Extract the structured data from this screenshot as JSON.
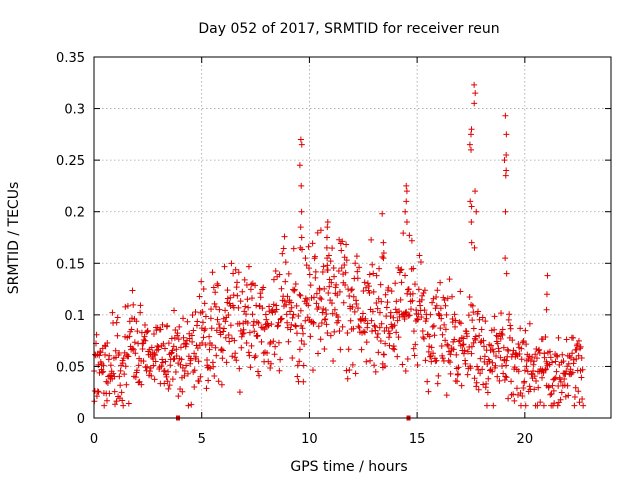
{
  "chart_data": {
    "type": "scatter",
    "title": "Day 052 of 2017, SRMTID for receiver reun",
    "xlabel": "GPS time / hours",
    "ylabel": "SRMTID / TECUs",
    "xlim": [
      0,
      24
    ],
    "ylim": [
      0,
      0.35
    ],
    "xticks": [
      0,
      5,
      10,
      15,
      20
    ],
    "xtick_labels": [
      "0",
      "5",
      "10",
      "15",
      "20"
    ],
    "yticks": [
      0,
      0.05,
      0.1,
      0.15,
      0.2,
      0.25,
      0.3,
      0.35
    ],
    "ytick_labels": [
      "0",
      "0.05",
      "0.1",
      "0.15",
      "0.2",
      "0.25",
      "0.3",
      "0.35"
    ],
    "grid": true,
    "marker": "plus",
    "color": "#e00000",
    "zero_markers_x": [
      3.9,
      14.6
    ],
    "series": [
      {
        "name": "SRMTID",
        "trend": {
          "hours": [
            0,
            0.5,
            1,
            1.5,
            2,
            2.5,
            3,
            3.5,
            4,
            4.5,
            5,
            5.5,
            6,
            6.5,
            7,
            7.5,
            8,
            8.5,
            9,
            9.5,
            10,
            10.5,
            11,
            11.5,
            12,
            12.5,
            13,
            13.5,
            14,
            14.5,
            15,
            15.5,
            16,
            16.5,
            17,
            17.5,
            18,
            18.5,
            19,
            19.5,
            20,
            20.5,
            21,
            21.5,
            22,
            22.7
          ],
          "values": [
            0.045,
            0.05,
            0.055,
            0.06,
            0.07,
            0.065,
            0.06,
            0.055,
            0.06,
            0.065,
            0.08,
            0.085,
            0.09,
            0.09,
            0.095,
            0.09,
            0.095,
            0.095,
            0.1,
            0.11,
            0.105,
            0.12,
            0.12,
            0.115,
            0.11,
            0.1,
            0.1,
            0.095,
            0.105,
            0.11,
            0.09,
            0.08,
            0.085,
            0.075,
            0.065,
            0.075,
            0.06,
            0.055,
            0.06,
            0.06,
            0.055,
            0.045,
            0.045,
            0.04,
            0.045,
            0.05
          ]
        },
        "spikes": [
          {
            "hour": 9.6,
            "values": [
              0.27,
              0.265,
              0.245,
              0.225,
              0.2,
              0.185,
              0.175,
              0.165
            ]
          },
          {
            "hour": 10.8,
            "values": [
              0.19,
              0.185,
              0.175,
              0.165,
              0.155,
              0.148
            ]
          },
          {
            "hour": 13.4,
            "values": [
              0.198,
              0.17,
              0.16,
              0.155
            ]
          },
          {
            "hour": 14.5,
            "values": [
              0.225,
              0.22,
              0.21,
              0.2,
              0.19
            ]
          },
          {
            "hour": 17.5,
            "values": [
              0.28,
              0.275,
              0.265,
              0.26,
              0.21,
              0.205,
              0.19,
              0.17
            ]
          },
          {
            "hour": 17.7,
            "values": [
              0.323,
              0.315,
              0.305,
              0.22,
              0.2,
              0.165
            ]
          },
          {
            "hour": 19.1,
            "values": [
              0.293,
              0.275,
              0.255,
              0.25,
              0.24,
              0.235,
              0.2,
              0.155,
              0.14
            ]
          },
          {
            "hour": 21.0,
            "values": [
              0.138,
              0.12,
              0.105
            ]
          }
        ]
      }
    ]
  }
}
